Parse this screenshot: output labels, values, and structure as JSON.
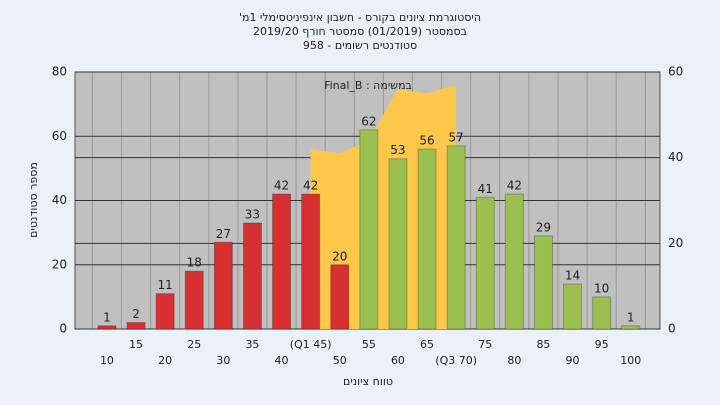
{
  "chart_data": {
    "type": "bar",
    "title": [
      "היסטוגרמת ציונים בקורס - חשבון אינפיניטסימלי 1מ'",
      "בסמסטר (01/2019) סמסטר חורף 2019/20",
      "סטודנטים רשומים - 958"
    ],
    "annotation": "Final_B : במשימה",
    "y_label": "מספר סטודנטים",
    "x_label": "טווח ציונים",
    "categories": [
      "10",
      "15",
      "20",
      "25",
      "30",
      "35",
      "40",
      "(Q1 45)",
      "50",
      "55",
      "60",
      "65",
      "(Q3 70)",
      "75",
      "80",
      "85",
      "90",
      "95",
      "100"
    ],
    "values": [
      1,
      2,
      11,
      18,
      27,
      33,
      42,
      42,
      20,
      62,
      53,
      56,
      57,
      41,
      42,
      29,
      14,
      10,
      1
    ],
    "colors": [
      "#d83030",
      "#d83030",
      "#d83030",
      "#d83030",
      "#d83030",
      "#d83030",
      "#d83030",
      "#d83030",
      "#d83030",
      "#9cc050",
      "#9cc050",
      "#9cc050",
      "#9cc050",
      "#9cc050",
      "#9cc050",
      "#9cc050",
      "#9cc050",
      "#9cc050",
      "#9cc050"
    ],
    "area": {
      "axis": "y2",
      "color": "#ffc84a",
      "values": [
        null,
        null,
        null,
        null,
        null,
        null,
        null,
        42,
        41,
        44,
        56,
        55,
        57,
        null,
        null,
        null,
        null,
        null,
        null
      ]
    },
    "ylim": [
      0,
      80
    ],
    "yticks": [
      0,
      20,
      40,
      60,
      80
    ],
    "y2lim": [
      0,
      60
    ],
    "y2ticks": [
      0,
      20,
      40,
      60
    ],
    "grid": true
  }
}
